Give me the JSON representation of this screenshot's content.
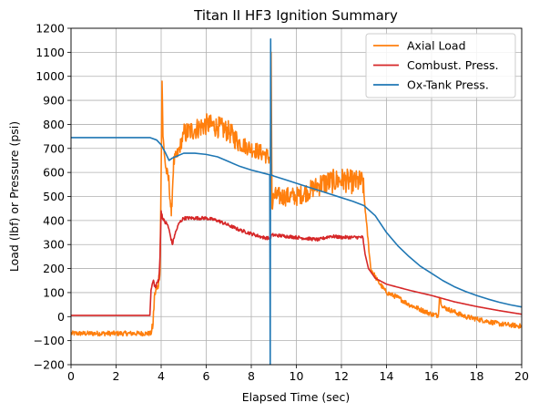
{
  "chart_data": {
    "type": "line",
    "title": "Titan II HF3 Ignition Summary",
    "xlabel": "Elapsed Time (sec)",
    "ylabel": "Load (lbf) or Pressure (psi)",
    "xlim": [
      0,
      20
    ],
    "ylim": [
      -200,
      1200
    ],
    "xticks": [
      0,
      2,
      4,
      6,
      8,
      10,
      12,
      14,
      16,
      18,
      20
    ],
    "yticks": [
      -200,
      -100,
      0,
      100,
      200,
      300,
      400,
      500,
      600,
      700,
      800,
      900,
      1000,
      1100,
      1200
    ],
    "grid": true,
    "legend_position": "upper-right",
    "series": [
      {
        "name": "Axial Load",
        "color": "#ff7f0e",
        "noise": [
          [
            0,
            3.6,
            10
          ],
          [
            3.6,
            4.3,
            25
          ],
          [
            4.3,
            5.0,
            30
          ],
          [
            5.0,
            7.5,
            45
          ],
          [
            7.5,
            8.8,
            35
          ],
          [
            8.9,
            11.0,
            40
          ],
          [
            11.0,
            13.0,
            50
          ],
          [
            13.0,
            20.0,
            10
          ]
        ],
        "points": [
          [
            0,
            -70
          ],
          [
            3.55,
            -70
          ],
          [
            3.62,
            -50
          ],
          [
            3.72,
            100
          ],
          [
            3.85,
            120
          ],
          [
            3.95,
            200
          ],
          [
            4.0,
            600
          ],
          [
            4.04,
            980
          ],
          [
            4.08,
            750
          ],
          [
            4.2,
            620
          ],
          [
            4.35,
            560
          ],
          [
            4.45,
            420
          ],
          [
            4.55,
            640
          ],
          [
            4.75,
            680
          ],
          [
            5.0,
            760
          ],
          [
            5.5,
            780
          ],
          [
            6.0,
            800
          ],
          [
            6.5,
            790
          ],
          [
            7.0,
            770
          ],
          [
            7.5,
            720
          ],
          [
            8.0,
            700
          ],
          [
            8.5,
            680
          ],
          [
            8.85,
            660
          ],
          [
            8.88,
            1100
          ],
          [
            8.92,
            450
          ],
          [
            9.0,
            500
          ],
          [
            9.5,
            500
          ],
          [
            10.0,
            500
          ],
          [
            10.5,
            520
          ],
          [
            11.0,
            550
          ],
          [
            11.5,
            560
          ],
          [
            12.0,
            570
          ],
          [
            12.5,
            560
          ],
          [
            12.95,
            560
          ],
          [
            13.1,
            400
          ],
          [
            13.3,
            200
          ],
          [
            13.6,
            150
          ],
          [
            14.0,
            100
          ],
          [
            14.5,
            80
          ],
          [
            15.0,
            50
          ],
          [
            15.5,
            30
          ],
          [
            16.0,
            10
          ],
          [
            16.3,
            5
          ],
          [
            16.35,
            80
          ],
          [
            16.5,
            40
          ],
          [
            17.0,
            20
          ],
          [
            17.5,
            0
          ],
          [
            18.0,
            -10
          ],
          [
            18.5,
            -20
          ],
          [
            19.0,
            -30
          ],
          [
            19.5,
            -35
          ],
          [
            20.0,
            -40
          ]
        ]
      },
      {
        "name": "Combust. Press.",
        "color": "#d62728",
        "noise": [
          [
            3.6,
            4.3,
            10
          ],
          [
            4.3,
            13.0,
            7
          ]
        ],
        "points": [
          [
            0,
            5
          ],
          [
            3.5,
            5
          ],
          [
            3.55,
            110
          ],
          [
            3.65,
            150
          ],
          [
            3.75,
            120
          ],
          [
            3.9,
            160
          ],
          [
            3.95,
            250
          ],
          [
            4.0,
            440
          ],
          [
            4.1,
            400
          ],
          [
            4.3,
            380
          ],
          [
            4.5,
            300
          ],
          [
            4.6,
            340
          ],
          [
            4.8,
            390
          ],
          [
            5.0,
            410
          ],
          [
            5.5,
            410
          ],
          [
            6.0,
            410
          ],
          [
            6.5,
            400
          ],
          [
            7.0,
            380
          ],
          [
            7.5,
            360
          ],
          [
            8.0,
            345
          ],
          [
            8.5,
            330
          ],
          [
            8.85,
            325
          ],
          [
            8.9,
            340
          ],
          [
            9.5,
            335
          ],
          [
            10.0,
            330
          ],
          [
            10.5,
            325
          ],
          [
            11.0,
            320
          ],
          [
            11.5,
            335
          ],
          [
            12.0,
            330
          ],
          [
            12.5,
            330
          ],
          [
            12.95,
            330
          ],
          [
            13.05,
            260
          ],
          [
            13.2,
            200
          ],
          [
            13.5,
            160
          ],
          [
            14.0,
            135
          ],
          [
            15.0,
            110
          ],
          [
            16.0,
            88
          ],
          [
            17.0,
            62
          ],
          [
            18.0,
            42
          ],
          [
            19.0,
            25
          ],
          [
            20.0,
            10
          ]
        ]
      },
      {
        "name": "Ox-Tank Press.",
        "color": "#1f77b4",
        "noise": [],
        "points": [
          [
            0,
            745
          ],
          [
            3.5,
            745
          ],
          [
            3.8,
            735
          ],
          [
            4.0,
            715
          ],
          [
            4.2,
            680
          ],
          [
            4.35,
            650
          ],
          [
            4.5,
            660
          ],
          [
            5.0,
            680
          ],
          [
            5.5,
            680
          ],
          [
            6.0,
            675
          ],
          [
            6.5,
            665
          ],
          [
            7.0,
            645
          ],
          [
            7.5,
            625
          ],
          [
            8.0,
            610
          ],
          [
            8.5,
            598
          ],
          [
            8.82,
            590
          ],
          [
            8.84,
            -200
          ],
          [
            8.86,
            1155
          ],
          [
            8.88,
            590
          ],
          [
            9.0,
            585
          ],
          [
            9.5,
            570
          ],
          [
            10.0,
            555
          ],
          [
            10.5,
            540
          ],
          [
            11.0,
            525
          ],
          [
            11.5,
            510
          ],
          [
            12.0,
            495
          ],
          [
            12.5,
            480
          ],
          [
            13.0,
            462
          ],
          [
            13.5,
            420
          ],
          [
            14.0,
            350
          ],
          [
            14.5,
            295
          ],
          [
            15.0,
            250
          ],
          [
            15.5,
            210
          ],
          [
            16.0,
            180
          ],
          [
            16.5,
            150
          ],
          [
            17.0,
            125
          ],
          [
            17.5,
            105
          ],
          [
            18.0,
            88
          ],
          [
            18.5,
            73
          ],
          [
            19.0,
            60
          ],
          [
            19.5,
            49
          ],
          [
            20.0,
            40
          ]
        ]
      }
    ]
  }
}
